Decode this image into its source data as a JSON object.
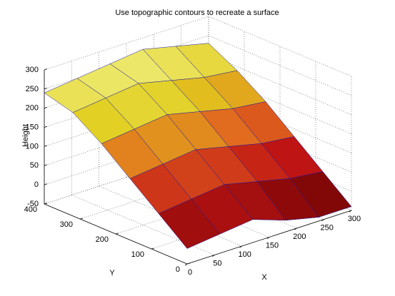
{
  "chart_data": {
    "type": "surface",
    "title": "Use topographic contours to recreate a surface",
    "xlabel": "X",
    "ylabel": "Y",
    "zlabel": "Height",
    "x": [
      0,
      60,
      120,
      180,
      240,
      300
    ],
    "y": [
      0,
      80,
      160,
      240,
      320,
      400
    ],
    "z": [
      [
        -10,
        0,
        10,
        -20,
        -40,
        -40
      ],
      [
        50,
        60,
        70,
        50,
        30,
        20
      ],
      [
        110,
        120,
        130,
        110,
        90,
        80
      ],
      [
        170,
        180,
        190,
        170,
        150,
        140
      ],
      [
        220,
        230,
        240,
        220,
        200,
        190
      ],
      [
        240,
        250,
        260,
        270,
        250,
        230
      ]
    ],
    "xlim": [
      0,
      300
    ],
    "ylim": [
      0,
      400
    ],
    "zlim": [
      -50,
      300
    ],
    "xticks": [
      0,
      50,
      100,
      150,
      200,
      250,
      300
    ],
    "yticks": [
      0,
      100,
      200,
      300,
      400
    ],
    "zticks": [
      -50,
      0,
      50,
      100,
      150,
      200,
      250,
      300
    ],
    "grid": true
  }
}
